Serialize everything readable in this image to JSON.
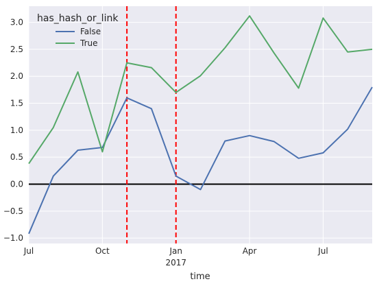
{
  "chart_data": {
    "type": "line",
    "title": "",
    "xlabel": "time",
    "ylabel": "",
    "x": [
      "2016-07",
      "2016-08",
      "2016-09",
      "2016-10",
      "2016-11",
      "2016-12",
      "2017-01",
      "2017-02",
      "2017-03",
      "2017-04",
      "2017-05",
      "2017-06",
      "2017-07",
      "2017-08",
      "2017-09"
    ],
    "xlim": [
      "2016-07",
      "2017-09"
    ],
    "ylim": [
      -1.1,
      3.3
    ],
    "x_ticks": [
      {
        "x": "2016-07",
        "label": "Jul",
        "sublabel": ""
      },
      {
        "x": "2016-10",
        "label": "Oct",
        "sublabel": ""
      },
      {
        "x": "2017-01",
        "label": "Jan",
        "sublabel": "2017"
      },
      {
        "x": "2017-04",
        "label": "Apr",
        "sublabel": ""
      },
      {
        "x": "2017-07",
        "label": "Jul",
        "sublabel": ""
      }
    ],
    "y_ticks": [
      -1.0,
      -0.5,
      0.0,
      0.5,
      1.0,
      1.5,
      2.0,
      2.5,
      3.0
    ],
    "y_tick_labels": [
      "−1.0",
      "−0.5",
      "0.0",
      "0.5",
      "1.0",
      "1.5",
      "2.0",
      "2.5",
      "3.0"
    ],
    "series": [
      {
        "name": "False",
        "color": "#4C72B0",
        "values": [
          -0.92,
          0.15,
          0.63,
          0.68,
          1.6,
          1.4,
          0.15,
          -0.1,
          0.8,
          0.9,
          0.79,
          0.48,
          0.58,
          1.02,
          1.8
        ]
      },
      {
        "name": "True",
        "color": "#55A868",
        "values": [
          0.38,
          1.05,
          2.08,
          0.6,
          2.25,
          2.16,
          1.7,
          2.01,
          2.53,
          3.12,
          2.43,
          1.78,
          3.08,
          2.45,
          2.5
        ]
      }
    ],
    "hlines": [
      {
        "y": 0.0,
        "color": "#000000",
        "style": "solid"
      }
    ],
    "vlines": [
      {
        "x": "2016-11",
        "color": "#FF0000",
        "style": "dashed"
      },
      {
        "x": "2017-01",
        "color": "#FF0000",
        "style": "dashed"
      }
    ],
    "legend": {
      "title": "has_hash_or_link",
      "location": "top-left"
    },
    "grid": true,
    "background": "#EAEAF2"
  }
}
